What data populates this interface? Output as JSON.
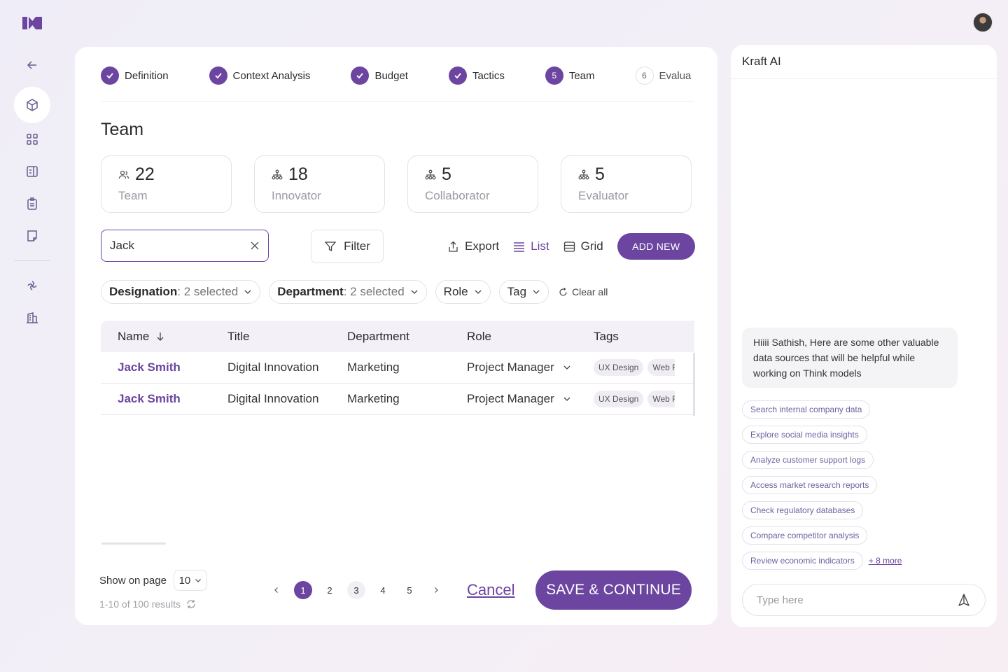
{
  "steps": [
    {
      "label": "Definition",
      "state": "done"
    },
    {
      "label": "Context Analysis",
      "state": "done"
    },
    {
      "label": "Budget",
      "state": "done"
    },
    {
      "label": "Tactics",
      "state": "done"
    },
    {
      "label": "Team",
      "state": "current",
      "num": "5"
    },
    {
      "label": "Evalua",
      "state": "upcoming",
      "num": "6"
    }
  ],
  "page_title": "Team",
  "stats": [
    {
      "value": "22",
      "label": "Team",
      "icon": "users-icon"
    },
    {
      "value": "18",
      "label": "Innovator",
      "icon": "org-icon"
    },
    {
      "value": "5",
      "label": "Collaborator",
      "icon": "org-icon"
    },
    {
      "value": "5",
      "label": "Evaluator",
      "icon": "org-icon"
    }
  ],
  "search": {
    "value": "Jack"
  },
  "toolbar": {
    "filter": "Filter",
    "export": "Export",
    "list": "List",
    "grid": "Grid",
    "add_new": "ADD NEW"
  },
  "chips": [
    {
      "key": "Designation",
      "sel": ": 2 selected"
    },
    {
      "key": "Department",
      "sel": ": 2 selected"
    },
    {
      "key": "Role",
      "sel": ""
    },
    {
      "key": "Tag",
      "sel": ""
    }
  ],
  "clear_all": "Clear all",
  "table": {
    "headers": [
      "Name",
      "Title",
      "Department",
      "Role",
      "Tags"
    ],
    "rows": [
      {
        "name": "Jack Smith",
        "title": "Digital Innovation",
        "department": "Marketing",
        "role": "Project Manager",
        "tags": [
          "UX Design",
          "Web Fl"
        ]
      },
      {
        "name": "Jack Smith",
        "title": "Digital Innovation",
        "department": "Marketing",
        "role": "Project Manager",
        "tags": [
          "UX Design",
          "Web Fl"
        ]
      }
    ]
  },
  "pagination": {
    "show_label": "Show on page",
    "per_page": "10",
    "results": "1-10 of 100 results",
    "pages": [
      "1",
      "2",
      "3",
      "4",
      "5"
    ],
    "current_page": "1"
  },
  "cancel": "Cancel",
  "save": "SAVE & CONTINUE",
  "ai": {
    "title": "Kraft AI",
    "message": "Hiiii Sathish, Here are some other valuable data sources that will be helpful while working on Think models",
    "suggestions": [
      "Search internal company data",
      "Explore social media insights",
      "Analyze customer support logs",
      "Access market research reports",
      "Check regulatory databases",
      "Compare competitor analysis",
      "Review economic indicators"
    ],
    "more": "+ 8 more",
    "input_placeholder": "Type here"
  },
  "colors": {
    "accent": "#6b45a0"
  }
}
